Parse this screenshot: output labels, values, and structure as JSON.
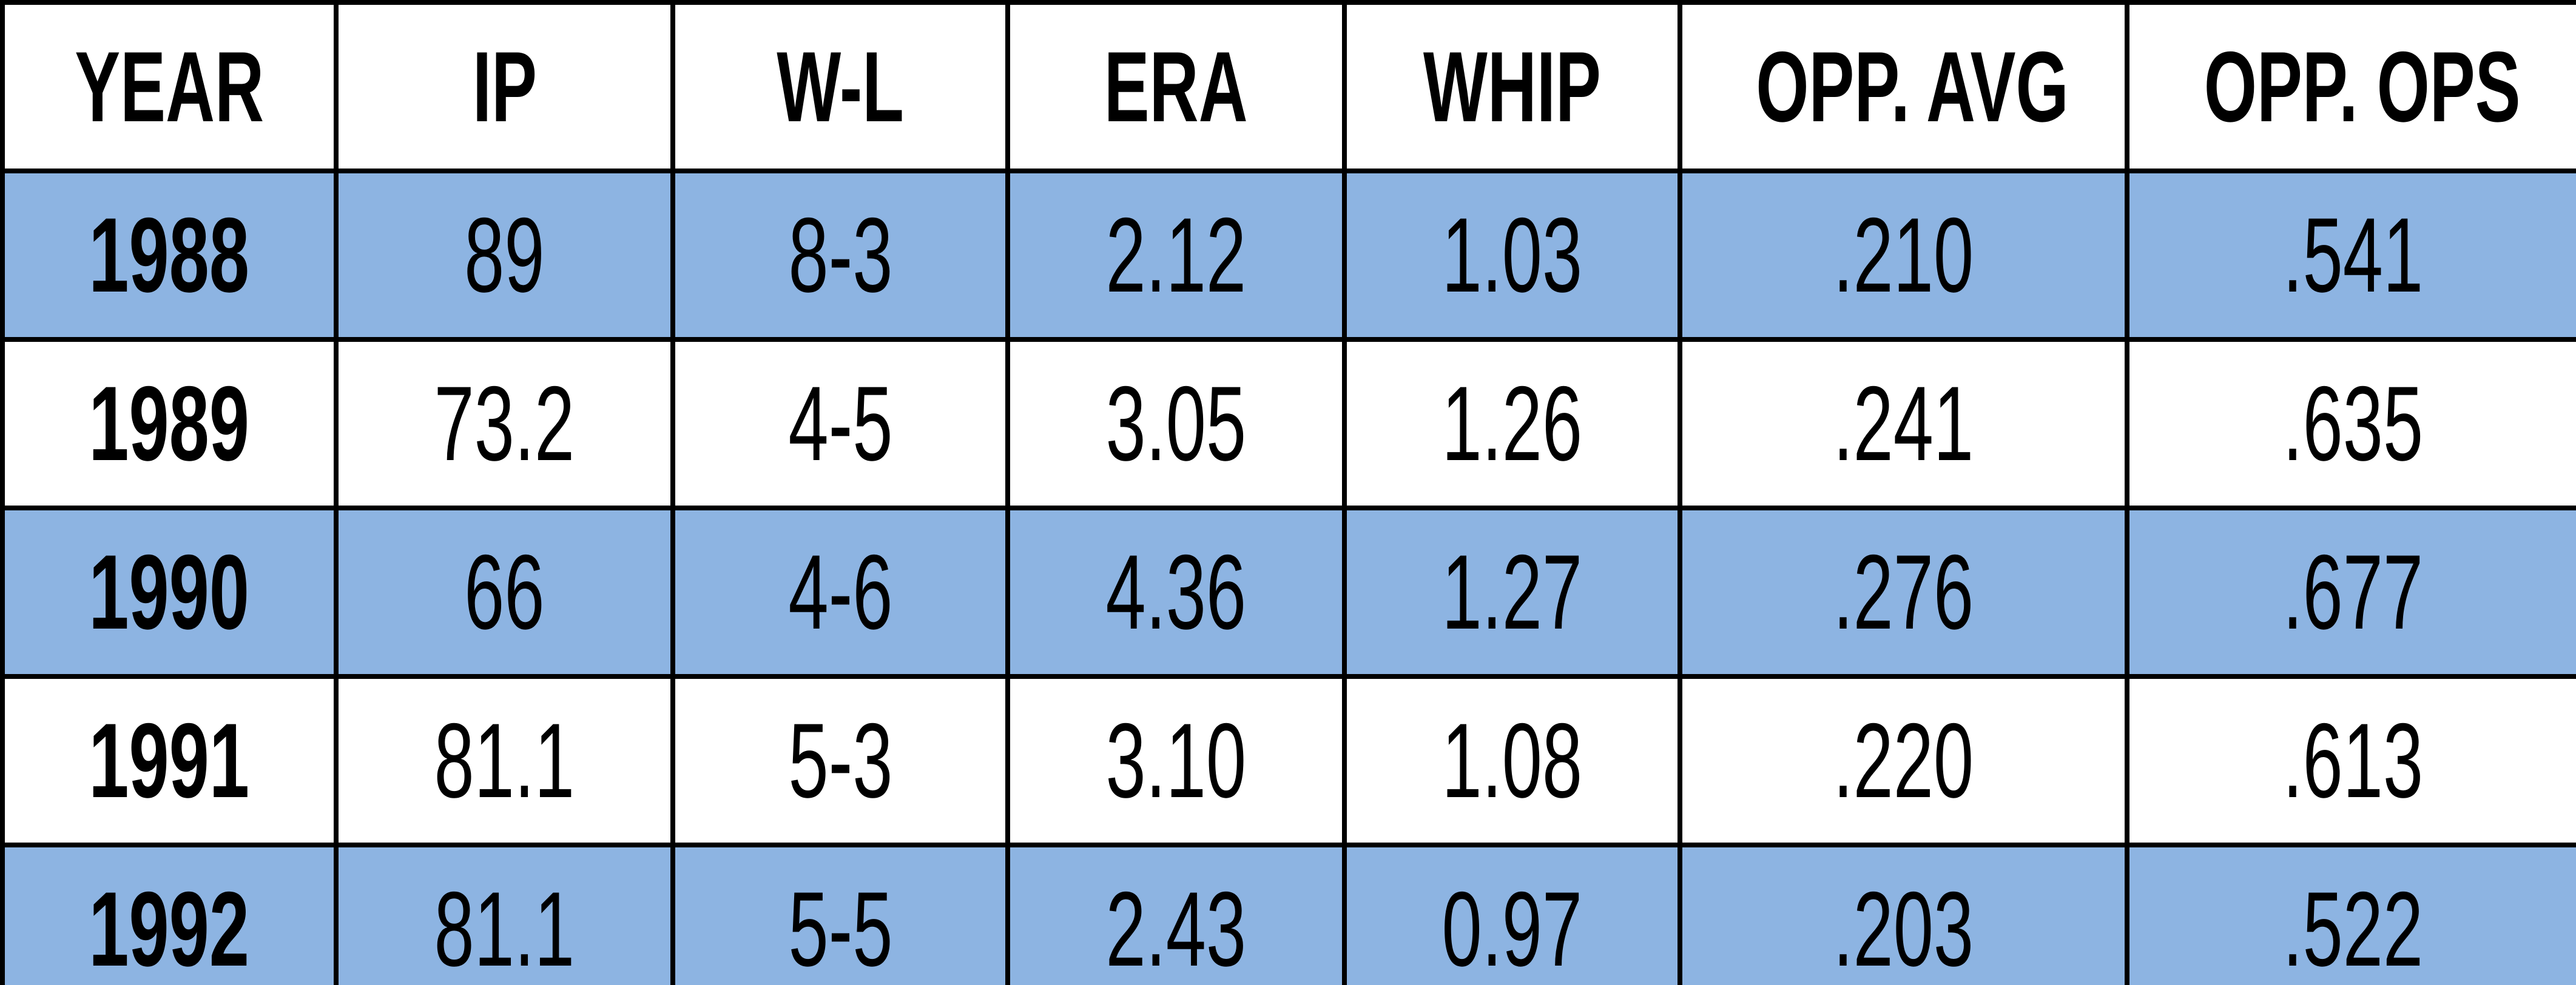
{
  "table": {
    "header": [
      "YEAR",
      "IP",
      "W-L",
      "ERA",
      "WHIP",
      "OPP. AVG",
      "OPP. OPS"
    ],
    "rows": [
      [
        "1988",
        "89",
        "8-3",
        "2.12",
        "1.03",
        ".210",
        ".541"
      ],
      [
        "1989",
        "73.2",
        "4-5",
        "3.05",
        "1.26",
        ".241",
        ".635"
      ],
      [
        "1990",
        "66",
        "4-6",
        "4.36",
        "1.27",
        ".276",
        ".677"
      ],
      [
        "1991",
        "81.1",
        "5-3",
        "3.10",
        "1.08",
        ".220",
        ".613"
      ],
      [
        "1992",
        "81.1",
        "5-5",
        "2.43",
        "0.97",
        ".203",
        ".522"
      ]
    ]
  }
}
